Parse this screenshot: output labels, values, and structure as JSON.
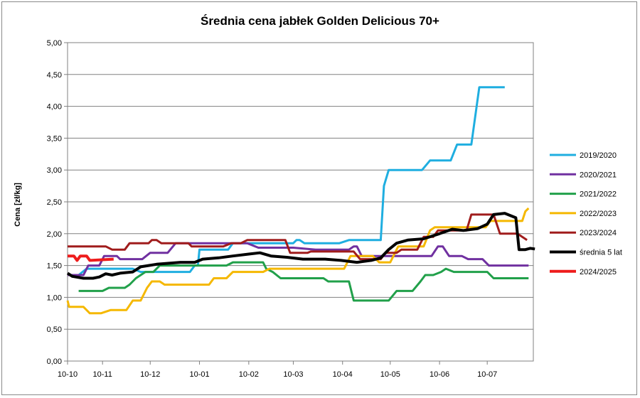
{
  "chart_data": {
    "type": "line",
    "title": "Średnia cena jabłek Golden Delicious 70+",
    "ylabel": "Cena [zł/kg]",
    "xlabel": "",
    "ylim": [
      0,
      5
    ],
    "yticks": [
      "0,00",
      "0,50",
      "1,00",
      "1,50",
      "2,00",
      "2,50",
      "3,00",
      "3,50",
      "4,00",
      "4,50",
      "5,00"
    ],
    "x_range": [
      "10-10",
      "10-07 (+8 days)"
    ],
    "xticks": [
      "10-10",
      "10-11",
      "10-12",
      "10-01",
      "10-02",
      "10-03",
      "10-04",
      "10-05",
      "10-06",
      "10-07"
    ],
    "legend_position": "right",
    "grid": "horizontal",
    "series": [
      {
        "name": "2019/2020",
        "color": "#1faee0",
        "width": 3,
        "points": [
          [
            "10-10",
            1.35
          ],
          [
            "10-17",
            1.35
          ],
          [
            "10-22",
            1.45
          ],
          [
            "11-20",
            1.45
          ],
          [
            "11-25",
            1.4
          ],
          [
            "12-26",
            1.4
          ],
          [
            "12-29",
            1.5
          ],
          [
            "12-31",
            1.5
          ],
          [
            "01-01",
            1.75
          ],
          [
            "01-19",
            1.75
          ],
          [
            "01-22",
            1.85
          ],
          [
            "03-01",
            1.85
          ],
          [
            "03-03",
            1.9
          ],
          [
            "03-05",
            1.9
          ],
          [
            "03-08",
            1.85
          ],
          [
            "03-30",
            1.85
          ],
          [
            "04-05",
            1.9
          ],
          [
            "04-25",
            1.9
          ],
          [
            "04-27",
            2.75
          ],
          [
            "04-30",
            3.0
          ],
          [
            "05-21",
            3.0
          ],
          [
            "05-26",
            3.15
          ],
          [
            "06-08",
            3.15
          ],
          [
            "06-12",
            3.4
          ],
          [
            "06-21",
            3.4
          ],
          [
            "06-26",
            4.3
          ],
          [
            "07-12",
            4.3
          ]
        ]
      },
      {
        "name": "2020/2021",
        "color": "#7030a0",
        "width": 3,
        "points": [
          [
            "10-10",
            1.35
          ],
          [
            "10-20",
            1.35
          ],
          [
            "10-23",
            1.5
          ],
          [
            "10-30",
            1.5
          ],
          [
            "11-02",
            1.65
          ],
          [
            "11-10",
            1.65
          ],
          [
            "11-12",
            1.6
          ],
          [
            "11-26",
            1.6
          ],
          [
            "12-01",
            1.7
          ],
          [
            "12-12",
            1.7
          ],
          [
            "12-17",
            1.85
          ],
          [
            "01-31",
            1.85
          ],
          [
            "02-07",
            1.78
          ],
          [
            "03-01",
            1.78
          ],
          [
            "03-15",
            1.75
          ],
          [
            "04-05",
            1.75
          ],
          [
            "04-08",
            1.8
          ],
          [
            "04-10",
            1.8
          ],
          [
            "04-13",
            1.65
          ],
          [
            "05-27",
            1.65
          ],
          [
            "05-31",
            1.8
          ],
          [
            "06-03",
            1.8
          ],
          [
            "06-07",
            1.65
          ],
          [
            "06-15",
            1.65
          ],
          [
            "06-19",
            1.6
          ],
          [
            "06-28",
            1.6
          ],
          [
            "07-02",
            1.5
          ],
          [
            "07-27",
            1.5
          ]
        ]
      },
      {
        "name": "2021/2022",
        "color": "#21a04a",
        "width": 3,
        "points": [
          [
            "10-17",
            1.1
          ],
          [
            "11-01",
            1.1
          ],
          [
            "11-05",
            1.15
          ],
          [
            "11-15",
            1.15
          ],
          [
            "11-18",
            1.2
          ],
          [
            "11-22",
            1.3
          ],
          [
            "11-28",
            1.4
          ],
          [
            "12-03",
            1.4
          ],
          [
            "12-07",
            1.5
          ],
          [
            "01-18",
            1.5
          ],
          [
            "01-22",
            1.55
          ],
          [
            "02-10",
            1.55
          ],
          [
            "02-12",
            1.45
          ],
          [
            "02-16",
            1.4
          ],
          [
            "02-21",
            1.3
          ],
          [
            "03-20",
            1.3
          ],
          [
            "03-23",
            1.25
          ],
          [
            "04-05",
            1.25
          ],
          [
            "04-08",
            0.95
          ],
          [
            "04-30",
            0.95
          ],
          [
            "05-05",
            1.1
          ],
          [
            "05-15",
            1.1
          ],
          [
            "05-20",
            1.25
          ],
          [
            "05-23",
            1.35
          ],
          [
            "05-28",
            1.35
          ],
          [
            "06-02",
            1.4
          ],
          [
            "06-05",
            1.45
          ],
          [
            "06-10",
            1.4
          ],
          [
            "07-01",
            1.4
          ],
          [
            "07-05",
            1.3
          ],
          [
            "07-27",
            1.3
          ]
        ]
      },
      {
        "name": "2022/2023",
        "color": "#f5b800",
        "width": 3,
        "points": [
          [
            "10-10",
            0.95
          ],
          [
            "10-11",
            0.85
          ],
          [
            "10-20",
            0.85
          ],
          [
            "10-24",
            0.75
          ],
          [
            "10-31",
            0.75
          ],
          [
            "11-06",
            0.8
          ],
          [
            "11-16",
            0.8
          ],
          [
            "11-20",
            0.95
          ],
          [
            "11-25",
            0.95
          ],
          [
            "11-29",
            1.15
          ],
          [
            "12-02",
            1.25
          ],
          [
            "12-07",
            1.25
          ],
          [
            "12-10",
            1.2
          ],
          [
            "01-07",
            1.2
          ],
          [
            "01-10",
            1.3
          ],
          [
            "01-18",
            1.3
          ],
          [
            "01-22",
            1.4
          ],
          [
            "02-10",
            1.4
          ],
          [
            "02-14",
            1.45
          ],
          [
            "04-02",
            1.45
          ],
          [
            "04-06",
            1.65
          ],
          [
            "04-20",
            1.65
          ],
          [
            "04-24",
            1.55
          ],
          [
            "05-01",
            1.55
          ],
          [
            "05-06",
            1.8
          ],
          [
            "05-22",
            1.8
          ],
          [
            "05-26",
            2.05
          ],
          [
            "05-29",
            2.1
          ],
          [
            "06-30",
            2.1
          ],
          [
            "07-03",
            2.2
          ],
          [
            "07-23",
            2.2
          ],
          [
            "07-25",
            2.35
          ],
          [
            "07-27",
            2.4
          ]
        ]
      },
      {
        "name": "2023/2024",
        "color": "#a01c1c",
        "width": 3,
        "points": [
          [
            "10-10",
            1.8
          ],
          [
            "11-03",
            1.8
          ],
          [
            "11-07",
            1.75
          ],
          [
            "11-15",
            1.75
          ],
          [
            "11-18",
            1.85
          ],
          [
            "11-30",
            1.85
          ],
          [
            "12-02",
            1.9
          ],
          [
            "12-05",
            1.9
          ],
          [
            "12-08",
            1.85
          ],
          [
            "12-25",
            1.85
          ],
          [
            "12-27",
            1.8
          ],
          [
            "01-16",
            1.8
          ],
          [
            "01-21",
            1.85
          ],
          [
            "01-27",
            1.85
          ],
          [
            "01-31",
            1.9
          ],
          [
            "02-24",
            1.9
          ],
          [
            "02-27",
            1.7
          ],
          [
            "03-10",
            1.7
          ],
          [
            "03-12",
            1.72
          ],
          [
            "04-08",
            1.72
          ],
          [
            "04-12",
            1.6
          ],
          [
            "04-25",
            1.6
          ],
          [
            "04-28",
            1.7
          ],
          [
            "05-05",
            1.7
          ],
          [
            "05-08",
            1.75
          ],
          [
            "05-18",
            1.75
          ],
          [
            "05-22",
            1.95
          ],
          [
            "05-28",
            1.95
          ],
          [
            "05-31",
            2.05
          ],
          [
            "06-18",
            2.05
          ],
          [
            "06-21",
            2.3
          ],
          [
            "07-05",
            2.3
          ],
          [
            "07-09",
            2.0
          ],
          [
            "07-20",
            2.0
          ],
          [
            "07-26",
            1.9
          ]
        ]
      },
      {
        "name": "średnia 5 lat",
        "color": "#000000",
        "width": 4,
        "points": [
          [
            "10-10",
            1.38
          ],
          [
            "10-13",
            1.33
          ],
          [
            "10-20",
            1.3
          ],
          [
            "10-26",
            1.3
          ],
          [
            "10-30",
            1.32
          ],
          [
            "11-03",
            1.37
          ],
          [
            "11-07",
            1.35
          ],
          [
            "11-12",
            1.38
          ],
          [
            "11-20",
            1.4
          ],
          [
            "11-25",
            1.48
          ],
          [
            "11-30",
            1.5
          ],
          [
            "12-05",
            1.52
          ],
          [
            "12-20",
            1.55
          ],
          [
            "12-29",
            1.55
          ],
          [
            "01-03",
            1.6
          ],
          [
            "01-13",
            1.62
          ],
          [
            "01-22",
            1.65
          ],
          [
            "02-01",
            1.68
          ],
          [
            "02-08",
            1.7
          ],
          [
            "02-15",
            1.65
          ],
          [
            "02-25",
            1.63
          ],
          [
            "03-07",
            1.6
          ],
          [
            "03-21",
            1.6
          ],
          [
            "03-31",
            1.58
          ],
          [
            "04-10",
            1.55
          ],
          [
            "04-19",
            1.58
          ],
          [
            "04-25",
            1.62
          ],
          [
            "04-30",
            1.75
          ],
          [
            "05-05",
            1.85
          ],
          [
            "05-12",
            1.9
          ],
          [
            "05-22",
            1.92
          ],
          [
            "06-01",
            2.0
          ],
          [
            "06-09",
            2.07
          ],
          [
            "06-16",
            2.05
          ],
          [
            "06-25",
            2.08
          ],
          [
            "07-01",
            2.15
          ],
          [
            "07-05",
            2.3
          ],
          [
            "07-12",
            2.32
          ],
          [
            "07-19",
            2.25
          ],
          [
            "07-21",
            1.75
          ],
          [
            "07-25",
            1.75
          ],
          [
            "07-28",
            1.77
          ],
          [
            "07-31",
            1.76
          ]
        ]
      },
      {
        "name": "2024/2025",
        "color": "#ee1c1c",
        "width": 4,
        "points": [
          [
            "10-10",
            1.65
          ],
          [
            "10-14",
            1.65
          ],
          [
            "10-16",
            1.58
          ],
          [
            "10-18",
            1.65
          ],
          [
            "10-22",
            1.65
          ],
          [
            "10-24",
            1.58
          ],
          [
            "11-08",
            1.6
          ]
        ]
      }
    ]
  }
}
